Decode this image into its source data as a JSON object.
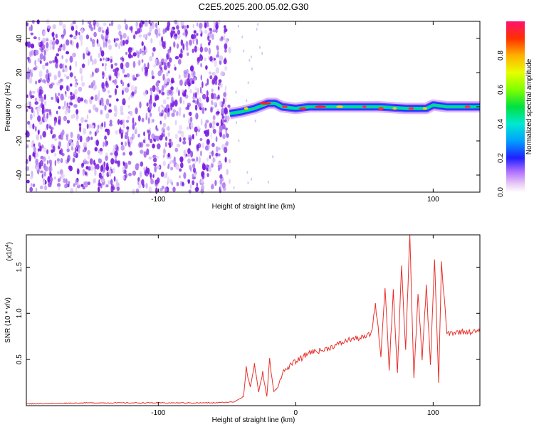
{
  "title": "C2E5.2025.200.05.02.G30",
  "colors": {
    "noise": "#7a1fe0",
    "snr_line": "#e8302a",
    "frame": "#000000"
  },
  "chart_data": [
    {
      "type": "heatmap",
      "panel": "spectrogram",
      "xlabel": "Height of straight line (km)",
      "ylabel": "Frequency (Hz)",
      "xlim": [
        -196,
        134
      ],
      "ylim": [
        -50,
        50
      ],
      "xticks": [
        -100,
        0,
        100
      ],
      "xtick_labels": [
        "-100",
        "",
        "100"
      ],
      "yticks": [
        -40,
        -20,
        0,
        20,
        40
      ],
      "ytick_labels": [
        "-40",
        "-20",
        "0",
        "20",
        "40"
      ],
      "noise_region": [
        -196,
        -48
      ],
      "signal_track": {
        "x": [
          -48,
          -40,
          -30,
          -20,
          -15,
          -10,
          0,
          10,
          20,
          40,
          60,
          80,
          95,
          100,
          110,
          134
        ],
        "y": [
          -4,
          -3,
          -1,
          2,
          2,
          0,
          -1,
          0,
          0,
          0,
          0,
          -1,
          -1,
          1,
          0,
          0
        ]
      },
      "colorbar": {
        "label": "Normalized spectral amplitude",
        "range": [
          0.0,
          1.0
        ],
        "ticks": [
          "0.0",
          "0.2",
          "0.4",
          "0.6",
          "0.8"
        ]
      }
    },
    {
      "type": "line",
      "panel": "snr",
      "xlabel": "Height of straight line (km)",
      "ylabel": "SNR (10 * v/v)",
      "scale_note": "(x10",
      "scale_exp": "4",
      "xlim": [
        -196,
        134
      ],
      "ylim": [
        0,
        1.85
      ],
      "xticks": [
        -100,
        0,
        100
      ],
      "xtick_labels": [
        "-100",
        "0",
        "100"
      ],
      "yticks": [
        0.5,
        1.0,
        1.5
      ],
      "ytick_labels": [
        "0.5",
        "1.0",
        "1.5"
      ],
      "series": [
        {
          "x": [
            -196,
            -150,
            -100,
            -60,
            -45,
            -38,
            -36,
            -33,
            -30,
            -27,
            -24,
            -21,
            -19,
            -16,
            -13,
            -10,
            -5,
            0,
            5,
            10,
            20,
            30,
            40,
            50,
            55,
            58,
            62,
            65,
            68,
            71,
            74,
            77,
            80,
            83,
            86,
            89,
            92,
            95,
            98,
            101,
            104,
            106,
            110,
            120,
            134
          ],
          "y": [
            0.02,
            0.03,
            0.03,
            0.03,
            0.04,
            0.1,
            0.4,
            0.2,
            0.45,
            0.15,
            0.35,
            0.1,
            0.5,
            0.15,
            0.2,
            0.35,
            0.42,
            0.48,
            0.52,
            0.58,
            0.6,
            0.66,
            0.72,
            0.74,
            0.78,
            1.1,
            0.55,
            1.3,
            0.4,
            1.25,
            0.35,
            1.5,
            0.6,
            1.85,
            0.3,
            1.2,
            0.5,
            1.3,
            0.45,
            1.58,
            0.25,
            1.55,
            0.78,
            0.8,
            0.8
          ]
        }
      ]
    }
  ]
}
